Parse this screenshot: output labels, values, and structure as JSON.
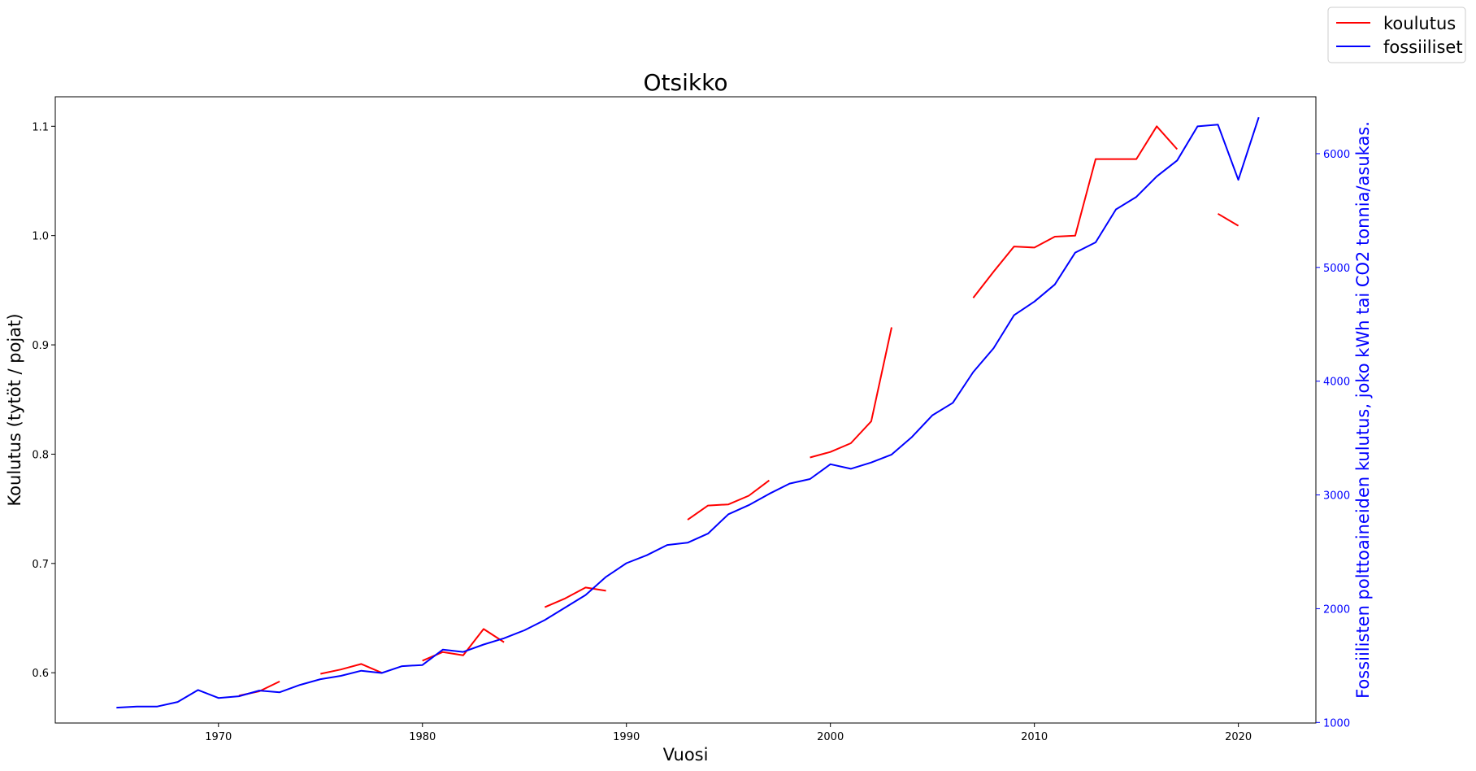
{
  "chart_data": {
    "type": "line",
    "title": "Otsikko",
    "xlabel": "Vuosi",
    "ylabel_left": "Koulutus (tytöt / pojat)",
    "ylabel_right": "Fossiilisten polttoaineiden kulutus, joko kWh tai CO2 tonnia/asukas.",
    "xlim": [
      1962,
      2023.8
    ],
    "ylim_left": [
      0.554,
      1.127
    ],
    "ylim_right": [
      995,
      6500
    ],
    "x_ticks": [
      1970,
      1980,
      1990,
      2000,
      2010,
      2020
    ],
    "y_left_ticks": [
      0.6,
      0.7,
      0.8,
      0.9,
      1.0,
      1.1
    ],
    "y_right_ticks": [
      1000,
      2000,
      3000,
      4000,
      5000,
      6000
    ],
    "x_tick_labels": [
      "1970",
      "1980",
      "1990",
      "2000",
      "2010",
      "2020"
    ],
    "y_left_tick_labels": [
      "0.6",
      "0.7",
      "0.8",
      "0.9",
      "1.0",
      "1.1"
    ],
    "y_right_tick_labels": [
      "1000",
      "2000",
      "3000",
      "4000",
      "5000",
      "6000"
    ],
    "legend": {
      "placement": "top-right",
      "entries": [
        "koulutus",
        "fossiiliset"
      ]
    },
    "series": [
      {
        "name": "koulutus",
        "axis": "left",
        "color": "#ff0000",
        "x": [
          1971,
          1972,
          1973,
          1974,
          1975,
          1976,
          1977,
          1978,
          1979,
          1980,
          1981,
          1982,
          1983,
          1984,
          1985,
          1986,
          1987,
          1988,
          1989,
          1990,
          1991,
          1992,
          1993,
          1994,
          1995,
          1996,
          1997,
          1998,
          1999,
          2000,
          2001,
          2002,
          2003,
          2004,
          2005,
          2006,
          2007,
          2008,
          2009,
          2010,
          2011,
          2012,
          2013,
          2014,
          2015,
          2016,
          2017,
          2018,
          2019,
          2020
        ],
        "values": [
          0.579,
          0.583,
          0.592,
          null,
          0.599,
          0.603,
          0.608,
          0.6,
          null,
          0.611,
          0.619,
          0.616,
          0.64,
          0.628,
          null,
          0.66,
          0.668,
          0.678,
          0.675,
          null,
          null,
          null,
          0.74,
          0.753,
          0.754,
          0.762,
          0.776,
          null,
          0.797,
          0.802,
          0.81,
          0.83,
          0.916,
          null,
          null,
          null,
          0.943,
          0.967,
          0.99,
          0.989,
          0.999,
          1.0,
          1.07,
          1.07,
          1.07,
          1.1,
          1.079,
          null,
          1.02,
          1.009
        ]
      },
      {
        "name": "fossiiliset",
        "axis": "right",
        "color": "#0000ff",
        "x": [
          1965,
          1966,
          1967,
          1968,
          1969,
          1970,
          1971,
          1972,
          1973,
          1974,
          1975,
          1976,
          1977,
          1978,
          1979,
          1980,
          1981,
          1982,
          1983,
          1984,
          1985,
          1986,
          1987,
          1988,
          1989,
          1990,
          1991,
          1992,
          1993,
          1994,
          1995,
          1996,
          1997,
          1998,
          1999,
          2000,
          2001,
          2002,
          2003,
          2004,
          2005,
          2006,
          2007,
          2008,
          2009,
          2010,
          2011,
          2012,
          2013,
          2014,
          2015,
          2016,
          2017,
          2018,
          2019,
          2020,
          2021
        ],
        "values": [
          1130,
          1140,
          1140,
          1180,
          1285,
          1215,
          1230,
          1280,
          1265,
          1330,
          1380,
          1410,
          1455,
          1435,
          1495,
          1505,
          1640,
          1620,
          1685,
          1740,
          1810,
          1900,
          2010,
          2120,
          2280,
          2400,
          2470,
          2560,
          2580,
          2660,
          2830,
          2910,
          3010,
          3100,
          3140,
          3270,
          3230,
          3285,
          3355,
          3510,
          3700,
          3810,
          4080,
          4290,
          4580,
          4700,
          4850,
          5130,
          5220,
          5510,
          5620,
          5800,
          5940,
          6240,
          6255,
          5770,
          6320
        ]
      }
    ]
  }
}
